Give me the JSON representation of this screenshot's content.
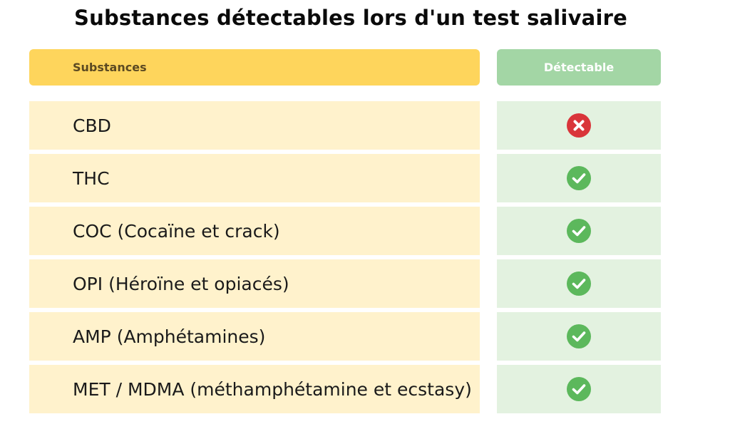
{
  "title": "Substances détectables lors d'un test salivaire",
  "header": {
    "substances": "Substances",
    "detectable": "Détectable"
  },
  "rows": [
    {
      "substance": "CBD",
      "detectable": false
    },
    {
      "substance": "THC",
      "detectable": true
    },
    {
      "substance": "COC (Cocaïne et crack)",
      "detectable": true
    },
    {
      "substance": "OPI (Héroïne et opiacés)",
      "detectable": true
    },
    {
      "substance": "AMP (Amphétamines)",
      "detectable": true
    },
    {
      "substance": "MET / MDMA (méthamphétamine et ecstasy)",
      "detectable": true
    }
  ],
  "colors": {
    "header_left": "#fed55c",
    "header_right": "#a3d6a5",
    "row_left": "#fff2cc",
    "row_right": "#e3f2e0",
    "check": "#5cb85c",
    "cross": "#d9353a"
  },
  "icons": {
    "detectable": "check-circle-icon",
    "not_detectable": "cross-circle-icon"
  }
}
